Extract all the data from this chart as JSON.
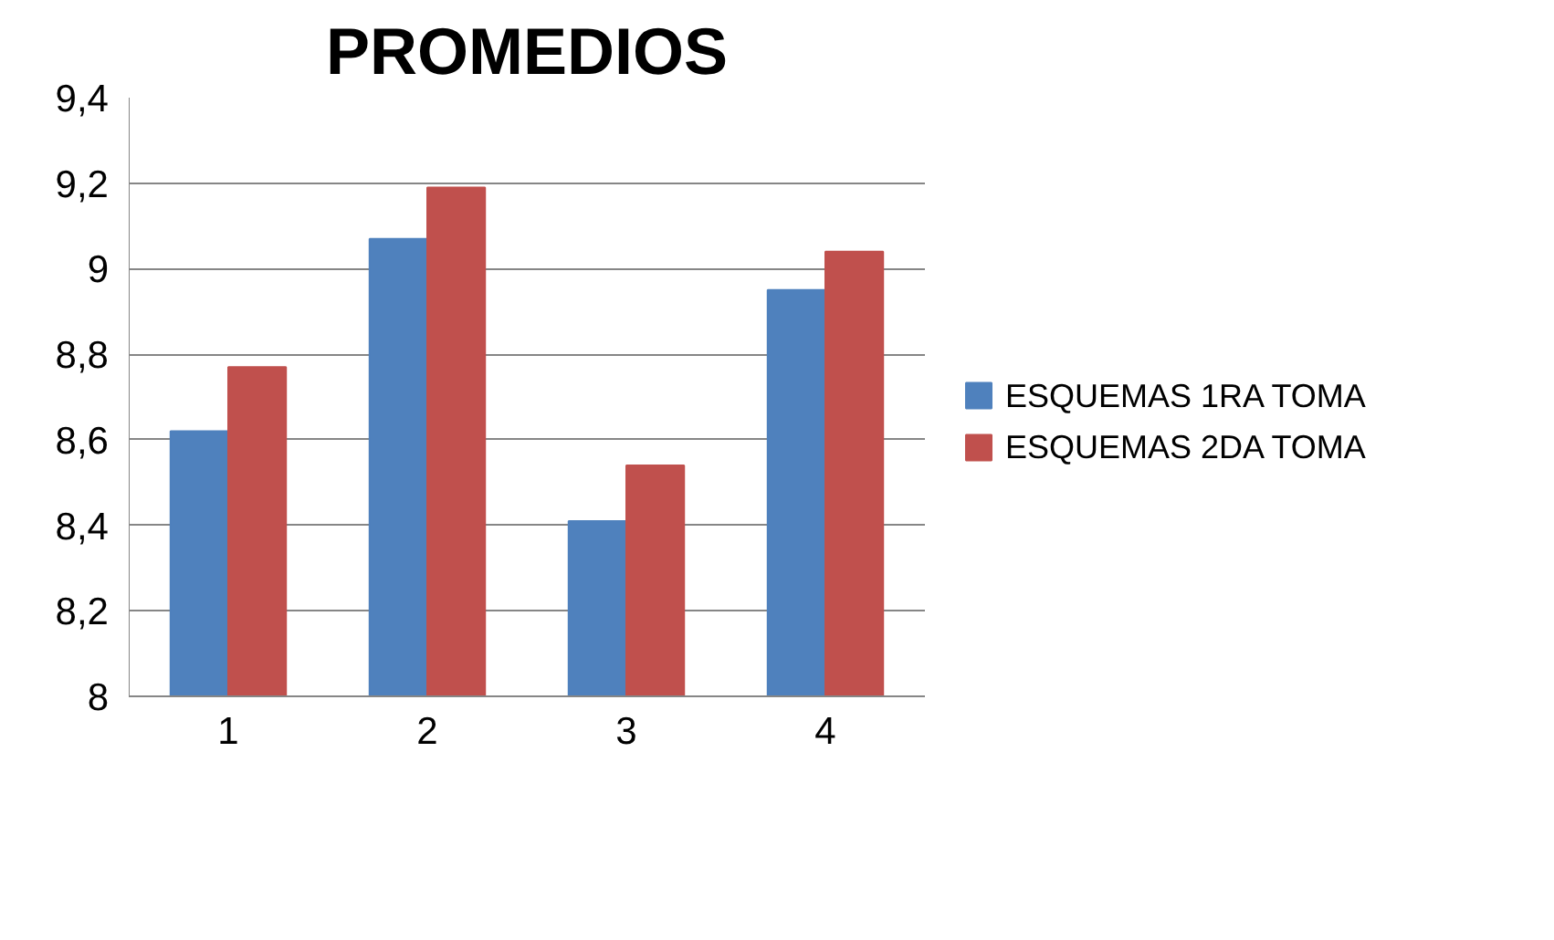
{
  "chart_data": {
    "type": "bar",
    "title": "PROMEDIOS",
    "categories": [
      "1",
      "2",
      "3",
      "4"
    ],
    "series": [
      {
        "name": "ESQUEMAS 1RA TOMA",
        "color": "#4f81bd",
        "values": [
          8.62,
          9.07,
          8.41,
          8.95
        ]
      },
      {
        "name": "ESQUEMAS 2DA TOMA",
        "color": "#c0504d",
        "values": [
          8.77,
          9.19,
          8.54,
          9.04
        ]
      }
    ],
    "ylim": [
      8,
      9.4
    ],
    "yticks": [
      8,
      {
        "value": 8.2,
        "label": "8,2"
      },
      {
        "value": 8.4,
        "label": "8,4"
      },
      {
        "value": 8.6,
        "label": "8,6"
      },
      {
        "value": 8.8,
        "label": "8,8"
      },
      9,
      {
        "value": 9.2,
        "label": "9,2"
      },
      {
        "value": 9.4,
        "label": "9,4"
      }
    ],
    "grid": "y",
    "legend": "right"
  }
}
